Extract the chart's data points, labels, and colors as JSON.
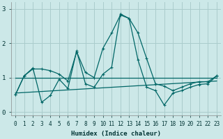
{
  "xlabel": "Humidex (Indice chaleur)",
  "ylabel": "",
  "background_color": "#cce8e8",
  "grid_color": "#aacccc",
  "line_color": "#006666",
  "xlim": [
    -0.5,
    23.5
  ],
  "ylim": [
    -0.1,
    3.2
  ],
  "yticks": [
    0,
    1,
    2,
    3
  ],
  "xticks": [
    0,
    1,
    2,
    3,
    4,
    5,
    6,
    7,
    8,
    9,
    10,
    11,
    12,
    13,
    14,
    15,
    16,
    17,
    18,
    19,
    20,
    21,
    22,
    23
  ],
  "series1_x": [
    0,
    1,
    2,
    3,
    4,
    5,
    6,
    7,
    8,
    9,
    10,
    11,
    12,
    13,
    14,
    15,
    16,
    17,
    18,
    19,
    20,
    21,
    22,
    23
  ],
  "series1_y": [
    0.5,
    1.05,
    1.25,
    1.25,
    1.2,
    1.1,
    0.9,
    1.75,
    1.15,
    1.0,
    1.85,
    2.3,
    2.82,
    2.72,
    2.3,
    1.55,
    0.82,
    0.75,
    0.62,
    0.72,
    0.82,
    0.88,
    0.88,
    1.05
  ],
  "series2_x": [
    0,
    1,
    2,
    3,
    4,
    5,
    6,
    7,
    8,
    9,
    10,
    11,
    12,
    13,
    14,
    15,
    16,
    17,
    18,
    19,
    20,
    21,
    22,
    23
  ],
  "series2_y": [
    0.5,
    1.05,
    1.28,
    0.28,
    0.48,
    0.95,
    0.68,
    1.78,
    0.82,
    0.72,
    1.1,
    1.3,
    2.85,
    2.72,
    1.52,
    0.72,
    0.62,
    0.2,
    0.55,
    0.62,
    0.72,
    0.8,
    0.82,
    1.05
  ],
  "series3_x": [
    0,
    23
  ],
  "series3_y": [
    1.0,
    1.0
  ],
  "series4_x": [
    0,
    23
  ],
  "series4_y": [
    0.55,
    0.9
  ]
}
